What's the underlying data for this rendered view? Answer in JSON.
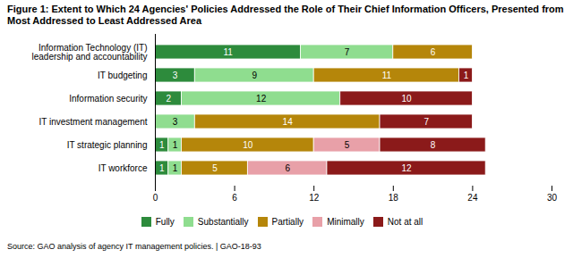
{
  "chart_data": {
    "type": "bar",
    "orientation": "horizontal",
    "stacked": true,
    "data_labels": true,
    "grid": false,
    "legend": "bottom",
    "title": "Figure 1: Extent to Which 24 Agencies' Policies Addressed the Role of Their Chief Information Officers, Presented from Most Addressed to Least Addressed Area",
    "caption": "Source: GAO analysis of agency IT management policies.  |  GAO-18-93",
    "categories": [
      "IT workforce",
      "IT strategic planning",
      "IT investment management",
      "Information security",
      "IT budgeting",
      "Information Technology (IT)\nleadership and accountability"
    ],
    "series": [
      {
        "name": "Fully",
        "color": "#2d8b3c",
        "values": [
          1,
          1,
          0,
          2,
          3,
          11
        ]
      },
      {
        "name": "Substantially",
        "color": "#8fdd8f",
        "values": [
          1,
          1,
          3,
          12,
          9,
          7
        ]
      },
      {
        "name": "Partially",
        "color": "#b5860a",
        "values": [
          5,
          10,
          14,
          0,
          11,
          6
        ]
      },
      {
        "name": "Minimally",
        "color": "#e8a0a8",
        "values": [
          6,
          5,
          0,
          0,
          0,
          0
        ]
      },
      {
        "name": "Not at all",
        "color": "#8b1a1a",
        "values": [
          12,
          8,
          7,
          10,
          1,
          0
        ]
      }
    ],
    "xlim": [
      0,
      30
    ],
    "xticks": [
      0,
      6,
      12,
      18,
      24,
      30
    ]
  }
}
